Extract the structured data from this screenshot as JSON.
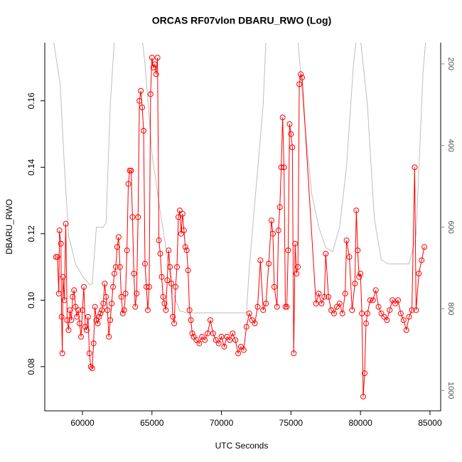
{
  "chart_data": {
    "type": "scatter-line",
    "title": "ORCAS RF07vlon DBARU_RWO (Log)",
    "xlabel": "UTC Seconds",
    "ylabel": "DBARU_RWO",
    "xlim": [
      57290,
      85770
    ],
    "xticks": [
      60000,
      65000,
      70000,
      75000,
      80000,
      85000
    ],
    "ylim": [
      0.0667,
      0.1775
    ],
    "yticks": [
      0.08,
      {
        "value": 0.1,
        "label": "0.10"
      },
      0.12,
      0.14,
      0.16
    ],
    "y2lim": [
      1050,
      148
    ],
    "y2ticks": [
      200,
      400,
      600,
      800,
      1000
    ],
    "series": [
      {
        "color": "#ff0000",
        "x": [
          58100,
          58200,
          58300,
          58350,
          58450,
          58500,
          58550,
          58600,
          58700,
          58800,
          58900,
          59000,
          59100,
          59200,
          59300,
          59400,
          59500,
          59600,
          59700,
          59800,
          59900,
          60000,
          60100,
          60200,
          60300,
          60400,
          60500,
          60600,
          60700,
          60800,
          60900,
          61000,
          61100,
          61200,
          61300,
          61400,
          61500,
          61600,
          61700,
          61800,
          61900,
          62000,
          62100,
          62200,
          62300,
          62400,
          62500,
          62600,
          62700,
          62800,
          62900,
          63000,
          63100,
          63200,
          63300,
          63400,
          63500,
          63600,
          63700,
          63800,
          63900,
          64000,
          64100,
          64200,
          64300,
          64400,
          64500,
          64600,
          64700,
          64800,
          64900,
          65000,
          65100,
          65200,
          65300,
          65400,
          65500,
          65600,
          65700,
          65800,
          65900,
          66000,
          66100,
          66200,
          66300,
          66400,
          66500,
          66600,
          66700,
          66800,
          66900,
          67000,
          67100,
          67200,
          67300,
          67400,
          67500,
          67600,
          67700,
          67800,
          67900,
          68000,
          68200,
          68400,
          68600,
          68800,
          69000,
          69200,
          69400,
          69600,
          69800,
          70000,
          70200,
          70400,
          70600,
          70800,
          71000,
          71200,
          71400,
          71600,
          71800,
          72000,
          72200,
          72400,
          72600,
          72800,
          73000,
          73200,
          73400,
          73600,
          73700,
          73800,
          74000,
          74100,
          74200,
          74300,
          74400,
          74500,
          74600,
          74700,
          74800,
          74900,
          75000,
          75100,
          75200,
          75300,
          75400,
          75500,
          75600,
          75700,
          75800,
          76800,
          77000,
          77200,
          77400,
          77500,
          77700,
          77900,
          78100,
          78300,
          78500,
          78700,
          78900,
          79000,
          79200,
          79400,
          79600,
          79700,
          79800,
          79900,
          80000,
          80100,
          80200,
          80300,
          80400,
          80500,
          80700,
          80900,
          81100,
          81300,
          81500,
          81700,
          81900,
          82100,
          82300,
          82500,
          82700,
          82900,
          83100,
          83300,
          83500,
          83700,
          83900,
          84000,
          84200,
          84400,
          84600
        ],
        "values": [
          0.113,
          0.113,
          0.102,
          0.121,
          0.117,
          0.095,
          0.084,
          0.107,
          0.1,
          0.123,
          0.094,
          0.091,
          0.097,
          0.094,
          0.101,
          0.103,
          0.098,
          0.095,
          0.097,
          0.093,
          0.089,
          0.097,
          0.104,
          0.092,
          0.091,
          0.095,
          0.084,
          0.08,
          0.0795,
          0.087,
          0.098,
          0.094,
          0.093,
          0.095,
          0.096,
          0.097,
          0.099,
          0.105,
          0.101,
          0.097,
          0.089,
          0.094,
          0.099,
          0.104,
          0.108,
          0.11,
          0.116,
          0.119,
          0.11,
          0.101,
          0.096,
          0.097,
          0.102,
          0.115,
          0.135,
          0.139,
          0.139,
          0.125,
          0.108,
          0.098,
          0.102,
          0.125,
          0.16,
          0.163,
          0.158,
          0.151,
          0.111,
          0.104,
          0.097,
          0.104,
          0.162,
          0.173,
          0.17,
          0.171,
          0.168,
          0.173,
          0.118,
          0.114,
          0.107,
          0.101,
          0.099,
          0.097,
          0.106,
          0.115,
          0.11,
          0.105,
          0.095,
          0.093,
          0.104,
          0.11,
          0.125,
          0.127,
          0.12,
          0.126,
          0.121,
          0.116,
          0.115,
          0.109,
          0.097,
          0.094,
          0.09,
          0.089,
          0.088,
          0.087,
          0.089,
          0.088,
          0.09,
          0.094,
          0.09,
          0.088,
          0.087,
          0.089,
          0.086,
          0.089,
          0.088,
          0.09,
          0.088,
          0.084,
          0.086,
          0.085,
          0.092,
          0.096,
          0.094,
          0.093,
          0.098,
          0.112,
          0.097,
          0.099,
          0.111,
          0.124,
          0.12,
          0.104,
          0.098,
          0.121,
          0.128,
          0.14,
          0.155,
          0.14,
          0.098,
          0.098,
          0.115,
          0.153,
          0.15,
          0.146,
          0.084,
          0.117,
          0.108,
          0.11,
          0.165,
          0.168,
          0.167,
          0.099,
          0.102,
          0.099,
          0.101,
          0.114,
          0.101,
          0.097,
          0.096,
          0.098,
          0.099,
          0.096,
          0.102,
          0.118,
          0.113,
          0.097,
          0.105,
          0.127,
          0.115,
          0.107,
          0.108,
          0.096,
          0.071,
          0.078,
          0.093,
          0.096,
          0.1,
          0.1,
          0.103,
          0.098,
          0.096,
          0.095,
          0.094,
          0.097,
          0.1,
          0.099,
          0.1,
          0.096,
          0.094,
          0.091,
          0.095,
          0.097,
          0.14,
          0.097,
          0.108,
          0.112,
          0.116
        ]
      },
      {
        "color": "#bebebe",
        "axis": "y2",
        "x": [
          57900,
          58400,
          58700,
          59000,
          59500,
          60000,
          60500,
          60700,
          61000,
          61500,
          61700,
          62000,
          62300,
          64300,
          64500,
          65000,
          65500,
          66000,
          66500,
          67000,
          67500,
          70000,
          71800,
          72000,
          72500,
          73000,
          73200,
          75500,
          76000,
          76500,
          77000,
          77500,
          78000,
          78500,
          79000,
          79500,
          79700,
          80000,
          80500,
          81000,
          81500,
          82000,
          83500,
          84000,
          84500,
          84700
        ],
        "values": [
          140,
          250,
          450,
          620,
          690,
          720,
          740,
          740,
          600,
          600,
          590,
          300,
          140,
          140,
          200,
          420,
          540,
          650,
          760,
          805,
          810,
          810,
          810,
          700,
          500,
          300,
          140,
          140,
          350,
          520,
          600,
          650,
          660,
          600,
          450,
          200,
          140,
          140,
          300,
          580,
          680,
          690,
          690,
          620,
          220,
          140
        ]
      }
    ]
  }
}
